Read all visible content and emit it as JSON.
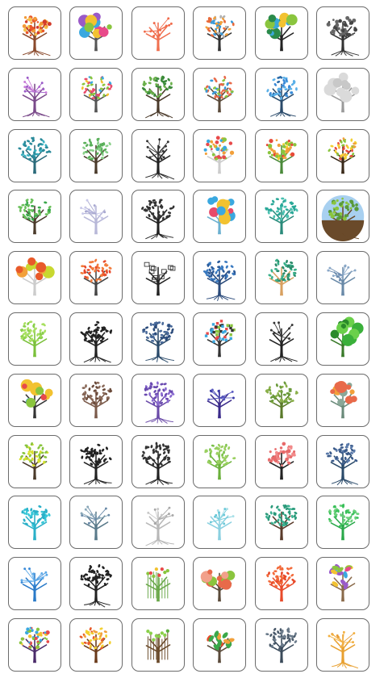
{
  "grid": {
    "tiles": [
      {
        "icon": "tree-icon",
        "trunk": "#8a4a2c",
        "colors": [
          "#e8562a",
          "#f29a38",
          "#d23a2a",
          "#f5c04a"
        ],
        "style": "dots",
        "roots": true
      },
      {
        "icon": "tree-icon",
        "trunk": "#555555",
        "colors": [
          "#e84a8a",
          "#3aa8e0",
          "#f2c230",
          "#8ac53e",
          "#9a5ac8"
        ],
        "style": "circles",
        "roots": false
      },
      {
        "icon": "tree-icon",
        "trunk": "#f07050",
        "colors": [
          "#f06a4a"
        ],
        "style": "branches",
        "roots": false
      },
      {
        "icon": "tree-icon",
        "trunk": "#333333",
        "colors": [
          "#e86a3a",
          "#f2a03a",
          "#3a9ad8",
          "#b0b0b0"
        ],
        "style": "leaves",
        "roots": false
      },
      {
        "icon": "tree-icon",
        "trunk": "#222222",
        "colors": [
          "#3aa8d8",
          "#f2c230",
          "#8ac53e",
          "#2a8a4a"
        ],
        "style": "circles",
        "roots": false
      },
      {
        "icon": "tree-icon",
        "trunk": "#333333",
        "colors": [
          "#444444",
          "#666666"
        ],
        "style": "dots",
        "roots": true
      },
      {
        "icon": "tree-icon",
        "trunk": "#7a4a8a",
        "colors": [
          "#c87ad8",
          "#9a5ac8"
        ],
        "style": "branches",
        "roots": true
      },
      {
        "icon": "tree-icon",
        "trunk": "#555555",
        "colors": [
          "#e84a6a",
          "#3aa8e0",
          "#8ac53e",
          "#f2c230"
        ],
        "style": "leaves",
        "roots": false
      },
      {
        "icon": "tree-icon",
        "trunk": "#4a3a2a",
        "colors": [
          "#6ab04a",
          "#3a8a3a"
        ],
        "style": "leaves",
        "roots": true
      },
      {
        "icon": "tree-icon",
        "trunk": "#5a4a3a",
        "colors": [
          "#e86a4a",
          "#8ac53e",
          "#3a9ad8"
        ],
        "style": "leaves",
        "roots": false
      },
      {
        "icon": "tree-icon",
        "trunk": "#2a4a6a",
        "colors": [
          "#3a8ad8",
          "#5ab0e8",
          "#2a6aa8"
        ],
        "style": "leaves",
        "roots": true
      },
      {
        "icon": "tree-icon",
        "trunk": "#9a9a9a",
        "colors": [
          "#c8c8c8",
          "#dadada"
        ],
        "style": "circles",
        "roots": false
      },
      {
        "icon": "tree-icon",
        "trunk": "#2a6a7a",
        "colors": [
          "#2a8a9a",
          "#3ab0c0"
        ],
        "style": "leaves",
        "roots": false
      },
      {
        "icon": "tree-icon",
        "trunk": "#4a3a2a",
        "colors": [
          "#8ad08a",
          "#5ab05a"
        ],
        "style": "leaves",
        "roots": false
      },
      {
        "icon": "tree-icon",
        "trunk": "#222222",
        "colors": [
          "#333333"
        ],
        "style": "branches",
        "roots": true
      },
      {
        "icon": "tree-icon",
        "trunk": "#cccccc",
        "colors": [
          "#f2a03a",
          "#e84a4a",
          "#3aa8e0",
          "#8ac53e"
        ],
        "style": "dots",
        "roots": false
      },
      {
        "icon": "tree-icon",
        "trunk": "#4a8a3a",
        "colors": [
          "#e84a3a",
          "#f2a03a",
          "#8ac53e",
          "#f2d030"
        ],
        "style": "dots",
        "roots": false
      },
      {
        "icon": "tree-icon",
        "trunk": "#3a2a1a",
        "colors": [
          "#f2a03a",
          "#e84a3a",
          "#8ac53e",
          "#f2d030"
        ],
        "style": "leaves",
        "roots": false
      },
      {
        "icon": "tree-icon",
        "trunk": "#4a3a2a",
        "colors": [
          "#3aa84a",
          "#6ac05a"
        ],
        "style": "leaves",
        "roots": false
      },
      {
        "icon": "tree-icon",
        "trunk": "#b8b8d8",
        "colors": [
          "#c8c8e8",
          "#a8a8d0"
        ],
        "style": "branches",
        "roots": false
      },
      {
        "icon": "tree-icon",
        "trunk": "#222222",
        "colors": [
          "#333333"
        ],
        "style": "leaves",
        "roots": true
      },
      {
        "icon": "tree-icon",
        "trunk": "#6ab0d0",
        "colors": [
          "#3aa8e0",
          "#f2c230",
          "#e84a6a"
        ],
        "style": "circles",
        "roots": false
      },
      {
        "icon": "tree-icon",
        "trunk": "#2a8a7a",
        "colors": [
          "#2aa898",
          "#4ac0b0"
        ],
        "style": "leaves",
        "roots": false
      },
      {
        "icon": "tree-icon",
        "trunk": "#6a4a2a",
        "colors": [
          "#8ac53e",
          "#5a9a3a"
        ],
        "style": "circle-scene",
        "roots": true,
        "sky": "#a8d0f0"
      },
      {
        "icon": "tree-icon",
        "trunk": "#cccccc",
        "colors": [
          "#c8d830",
          "#f2a03a",
          "#e85a2a"
        ],
        "style": "circles",
        "roots": false
      },
      {
        "icon": "tree-icon",
        "trunk": "#444444",
        "colors": [
          "#f27a3a",
          "#e84a2a"
        ],
        "style": "leaves",
        "roots": false
      },
      {
        "icon": "tree-icon",
        "trunk": "#222222",
        "colors": [
          "#333333"
        ],
        "style": "frames",
        "roots": false
      },
      {
        "icon": "tree-icon",
        "trunk": "#2a4a7a",
        "colors": [
          "#2a5a9a",
          "#3a7ac0"
        ],
        "style": "leaves",
        "roots": true
      },
      {
        "icon": "tree-icon",
        "trunk": "#d8a060",
        "colors": [
          "#2a8a6a",
          "#3ab08a"
        ],
        "style": "leaves",
        "roots": false
      },
      {
        "icon": "tree-icon",
        "trunk": "#6a8aa8",
        "colors": [
          "#8aa8c8",
          "#6a8ab0"
        ],
        "style": "branches",
        "roots": false
      },
      {
        "icon": "tree-icon",
        "trunk": "#7ac03a",
        "colors": [
          "#8ad04a",
          "#a8e060"
        ],
        "style": "leaves",
        "roots": false
      },
      {
        "icon": "tree-icon",
        "trunk": "#222222",
        "colors": [
          "#222222"
        ],
        "style": "leaves",
        "roots": true
      },
      {
        "icon": "tree-icon",
        "trunk": "#2a4a6a",
        "colors": [
          "#2a4a7a",
          "#4a6a9a"
        ],
        "style": "leaves",
        "roots": true
      },
      {
        "icon": "tree-icon",
        "trunk": "#333333",
        "colors": [
          "#333333",
          "#e84a4a",
          "#3aa8e0",
          "#8ac53e"
        ],
        "style": "squares",
        "roots": false
      },
      {
        "icon": "tree-icon",
        "trunk": "#222222",
        "colors": [
          "#333333"
        ],
        "style": "branches",
        "roots": true
      },
      {
        "icon": "tree-icon",
        "trunk": "#3a7a2a",
        "colors": [
          "#3ab03a",
          "#6ad04a",
          "#2a8a2a"
        ],
        "style": "circles",
        "roots": false
      },
      {
        "icon": "tree-icon",
        "trunk": "#333333",
        "colors": [
          "#e84a4a",
          "#3aa8e0",
          "#f2c230",
          "#8ac53e"
        ],
        "style": "circles",
        "roots": false
      },
      {
        "icon": "tree-icon",
        "trunk": "#7a5a4a",
        "colors": [
          "#8a6a5a",
          "#6a4a3a"
        ],
        "style": "leaves",
        "roots": false
      },
      {
        "icon": "tree-icon",
        "trunk": "#6a4aa8",
        "colors": [
          "#8a6ad0",
          "#6a4ab0"
        ],
        "style": "leaves",
        "roots": true
      },
      {
        "icon": "tree-icon",
        "trunk": "#3a2a8a",
        "colors": [
          "#3a3aa8",
          "#5a5ac0"
        ],
        "style": "branches",
        "roots": false
      },
      {
        "icon": "tree-icon",
        "trunk": "#5a7a2a",
        "colors": [
          "#8ab04a",
          "#6a9a3a"
        ],
        "style": "leaves",
        "roots": false
      },
      {
        "icon": "tree-icon",
        "trunk": "#6a8a7a",
        "colors": [
          "#8aa898",
          "#e86a4a",
          "#f2a03a"
        ],
        "style": "circles",
        "roots": false
      },
      {
        "icon": "tree-icon",
        "trunk": "#4a3a2a",
        "colors": [
          "#d8e030",
          "#8ac53e"
        ],
        "style": "leaves",
        "roots": false
      },
      {
        "icon": "tree-icon",
        "trunk": "#222222",
        "colors": [
          "#222222"
        ],
        "style": "leaves",
        "roots": true
      },
      {
        "icon": "tree-icon",
        "trunk": "#222222",
        "colors": [
          "#333333"
        ],
        "style": "leaves",
        "roots": true
      },
      {
        "icon": "tree-icon",
        "trunk": "#6ab03a",
        "colors": [
          "#7ac04a",
          "#9ad060"
        ],
        "style": "leaves",
        "roots": false
      },
      {
        "icon": "tree-icon",
        "trunk": "#222222",
        "colors": [
          "#f28a8a",
          "#e86a6a"
        ],
        "style": "dots",
        "roots": false
      },
      {
        "icon": "tree-icon",
        "trunk": "#2a4a6a",
        "colors": [
          "#3a5a8a",
          "#5a7aaa"
        ],
        "style": "leaves",
        "roots": true
      },
      {
        "icon": "tree-icon",
        "trunk": "#2ab0c8",
        "colors": [
          "#3ac8d8",
          "#2ab0c8"
        ],
        "style": "leaves",
        "roots": false
      },
      {
        "icon": "tree-icon",
        "trunk": "#5a7a8a",
        "colors": [
          "#6a8aa8",
          "#8aa8b8"
        ],
        "style": "branches",
        "roots": false
      },
      {
        "icon": "tree-icon",
        "trunk": "#b8b8b8",
        "colors": [
          "#c8c8c8",
          "#a8a8a8"
        ],
        "style": "branches",
        "roots": true
      },
      {
        "icon": "tree-icon",
        "trunk": "#8ad0e0",
        "colors": [
          "#a8e0e8",
          "#6ac8d8"
        ],
        "style": "branches",
        "roots": false
      },
      {
        "icon": "tree-icon",
        "trunk": "#5a3a2a",
        "colors": [
          "#2a9a7a",
          "#3ab090"
        ],
        "style": "leaves",
        "roots": false
      },
      {
        "icon": "tree-icon",
        "trunk": "#2aa84a",
        "colors": [
          "#3ac05a",
          "#6ad07a"
        ],
        "style": "leaves",
        "roots": false
      },
      {
        "icon": "tree-icon",
        "trunk": "#2a7ac8",
        "colors": [
          "#3a8ad8",
          "#5aa8e8"
        ],
        "style": "branches",
        "roots": false
      },
      {
        "icon": "tree-icon",
        "trunk": "#222222",
        "colors": [
          "#222222"
        ],
        "style": "leaves",
        "roots": true
      },
      {
        "icon": "tree-icon",
        "trunk": "#6aa84a",
        "colors": [
          "#8ac53e",
          "#f2c230",
          "#e84a4a"
        ],
        "style": "sticks",
        "roots": false
      },
      {
        "icon": "tree-icon",
        "trunk": "#5a4a3a",
        "colors": [
          "#f2a08a",
          "#e86a4a",
          "#8ac53e"
        ],
        "style": "circles",
        "roots": false
      },
      {
        "icon": "tree-icon",
        "trunk": "#e84a2a",
        "colors": [
          "#f26a3a",
          "#e84a2a"
        ],
        "style": "leaves",
        "roots": false
      },
      {
        "icon": "tree-icon",
        "trunk": "#8a6a4a",
        "colors": [
          "#e84a8a",
          "#3aa8e0",
          "#f2c230",
          "#8ac53e",
          "#9a5ac8"
        ],
        "style": "petals",
        "roots": false
      },
      {
        "icon": "tree-icon",
        "trunk": "#4a2a6a",
        "colors": [
          "#e84a4a",
          "#3aa8e0",
          "#f2c230",
          "#8ac53e"
        ],
        "style": "dots",
        "roots": false
      },
      {
        "icon": "tree-icon",
        "trunk": "#6a3a1a",
        "colors": [
          "#e85a2a",
          "#f2a03a",
          "#f2d030"
        ],
        "style": "leaves",
        "roots": false
      },
      {
        "icon": "tree-icon",
        "trunk": "#6a4a2a",
        "colors": [
          "#8ad04a",
          "#5ab03a"
        ],
        "style": "sticks",
        "roots": false
      },
      {
        "icon": "tree-icon",
        "trunk": "#5a4a3a",
        "colors": [
          "#e84a2a",
          "#f2a03a",
          "#3aa84a"
        ],
        "style": "petals",
        "roots": false
      },
      {
        "icon": "tree-icon",
        "trunk": "#3a4a5a",
        "colors": [
          "#4a5a6a",
          "#6a7a8a"
        ],
        "style": "leaves",
        "roots": false
      },
      {
        "icon": "tree-icon",
        "trunk": "#e8a030",
        "colors": [
          "#f2b040",
          "#e89a30"
        ],
        "style": "branches",
        "roots": true
      }
    ]
  }
}
